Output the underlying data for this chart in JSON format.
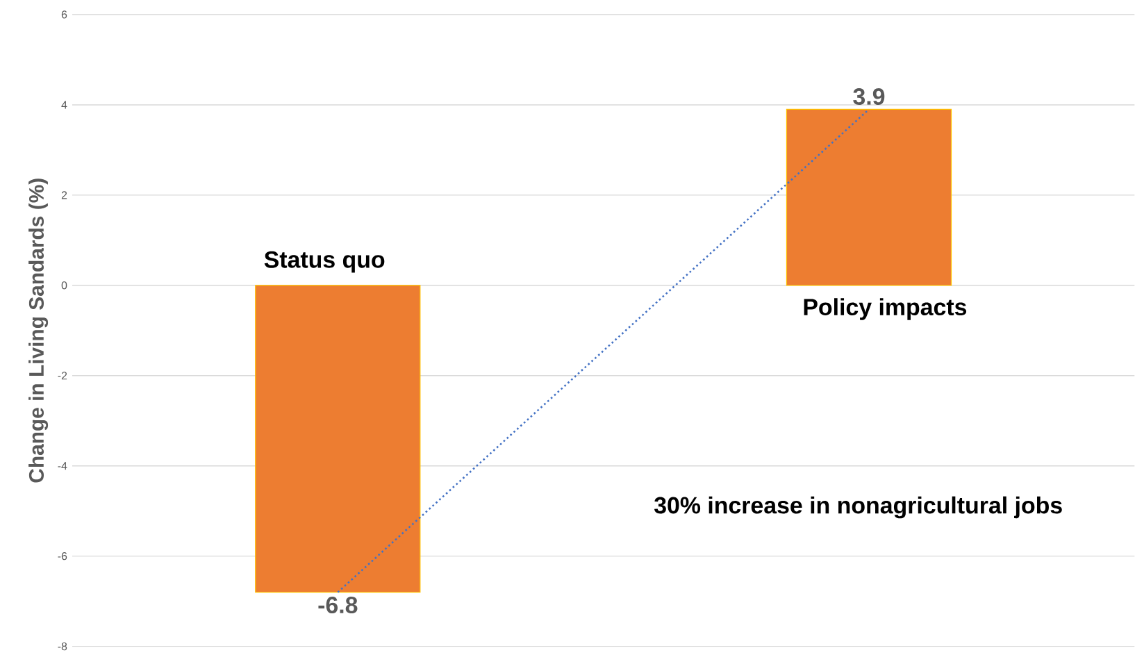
{
  "chart_data": {
    "type": "bar",
    "ylabel": "Change in Living Sandards (%)",
    "categories": [
      "Status quo",
      "Policy impacts"
    ],
    "series": [
      {
        "color": "#ed7d31",
        "values": [
          -6.8,
          3.9
        ],
        "value_labels": [
          "-6.8",
          "3.9"
        ]
      },
      {
        "type": "line",
        "color": "#4472c4",
        "line_style": "dotted",
        "values": [
          -6.8,
          3.9
        ]
      }
    ],
    "ylim": [
      -8,
      6
    ],
    "yticks": [
      -8,
      -6,
      -4,
      -2,
      0,
      2,
      4,
      6
    ],
    "grid": "y",
    "annotations": [
      "30% increase in nonagricultural jobs"
    ]
  }
}
